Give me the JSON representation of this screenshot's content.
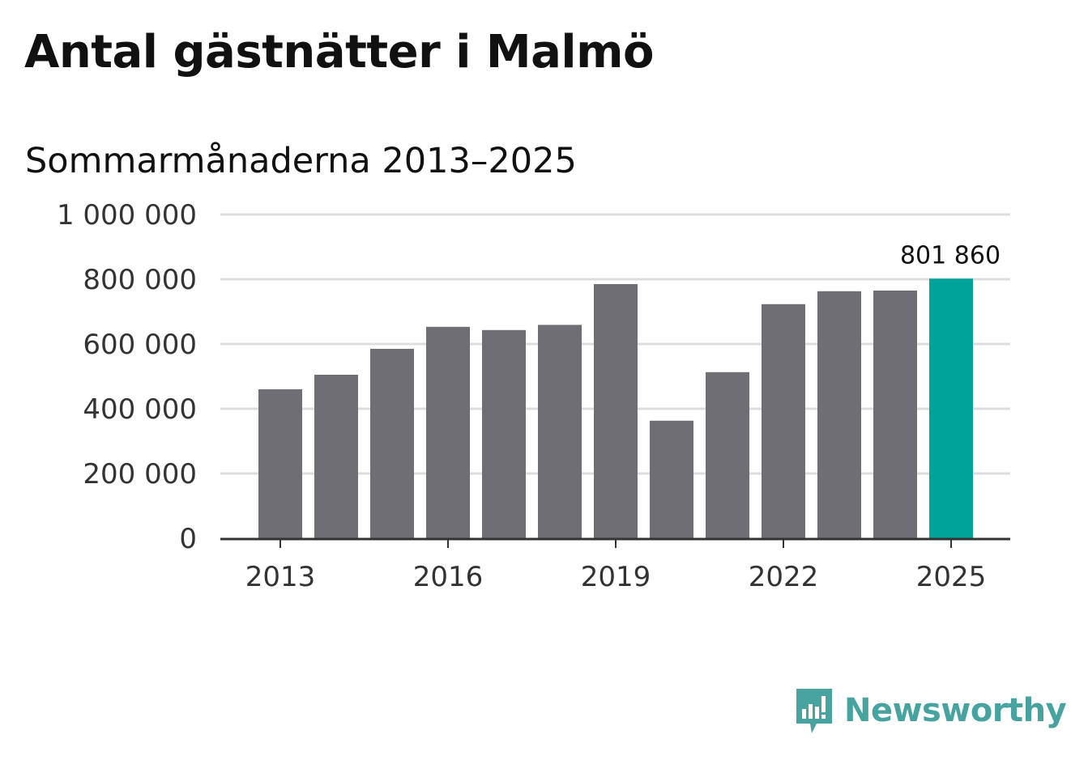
{
  "title": "Antal gästnätter i Malmö",
  "subtitle": "Sommarmånaderna 2013–2025",
  "brand": {
    "name": "Newsworthy",
    "icon": "bar-chart-speech-bubble-icon",
    "color": "#46a3a0"
  },
  "colors": {
    "bar": "#6f6e74",
    "highlight": "#00a39a",
    "grid": "#dddddd",
    "axis": "#333333"
  },
  "chart_data": {
    "type": "bar",
    "categories": [
      "2013",
      "2014",
      "2015",
      "2016",
      "2017",
      "2018",
      "2019",
      "2020",
      "2021",
      "2022",
      "2023",
      "2024",
      "2025"
    ],
    "values": [
      460000,
      505000,
      585000,
      653000,
      643000,
      659000,
      785000,
      363000,
      513000,
      723000,
      763000,
      765000,
      801860
    ],
    "highlight": {
      "category": "2025",
      "label": "801 860"
    },
    "xticks": [
      "2013",
      "2016",
      "2019",
      "2022",
      "2025"
    ],
    "yticks": [
      {
        "value": 0,
        "label": "0"
      },
      {
        "value": 200000,
        "label": "200 000"
      },
      {
        "value": 400000,
        "label": "400 000"
      },
      {
        "value": 600000,
        "label": "600 000"
      },
      {
        "value": 800000,
        "label": "800 000"
      },
      {
        "value": 1000000,
        "label": "1 000 000"
      }
    ],
    "ylim": [
      0,
      1000000
    ],
    "xlabel": "",
    "ylabel": "",
    "grid": true,
    "legend": "none"
  }
}
